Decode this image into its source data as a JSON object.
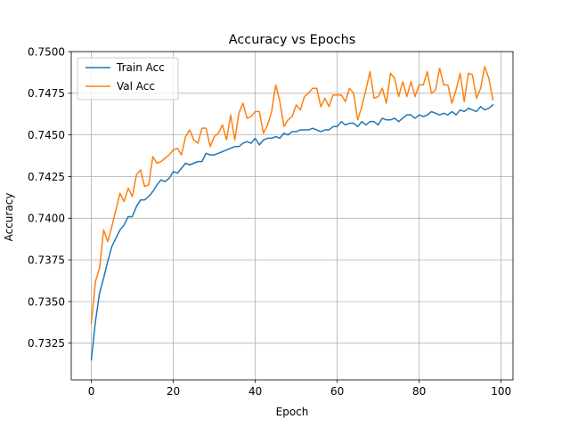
{
  "chart_data": {
    "type": "line",
    "title": "Accuracy vs Epochs",
    "xlabel": "Epoch",
    "ylabel": "Accuracy",
    "xlim": [
      -4.9,
      102.9
    ],
    "ylim": [
      0.7303,
      0.75
    ],
    "xticks": [
      0,
      20,
      40,
      60,
      80,
      100
    ],
    "xtick_labels": [
      "0",
      "20",
      "40",
      "60",
      "80",
      "100"
    ],
    "yticks": [
      0.7325,
      0.735,
      0.7375,
      0.74,
      0.7425,
      0.745,
      0.7475,
      0.75
    ],
    "ytick_labels": [
      "0.7325",
      "0.7350",
      "0.7375",
      "0.7400",
      "0.7425",
      "0.7450",
      "0.7475",
      "0.7500"
    ],
    "grid": true,
    "legend_position": "upper-left",
    "x": [
      0,
      1,
      2,
      3,
      4,
      5,
      6,
      7,
      8,
      9,
      10,
      11,
      12,
      13,
      14,
      15,
      16,
      17,
      18,
      19,
      20,
      21,
      22,
      23,
      24,
      25,
      26,
      27,
      28,
      29,
      30,
      31,
      32,
      33,
      34,
      35,
      36,
      37,
      38,
      39,
      40,
      41,
      42,
      43,
      44,
      45,
      46,
      47,
      48,
      49,
      50,
      51,
      52,
      53,
      54,
      55,
      56,
      57,
      58,
      59,
      60,
      61,
      62,
      63,
      64,
      65,
      66,
      67,
      68,
      69,
      70,
      71,
      72,
      73,
      74,
      75,
      76,
      77,
      78,
      79,
      80,
      81,
      82,
      83,
      84,
      85,
      86,
      87,
      88,
      89,
      90,
      91,
      92,
      93,
      94,
      95,
      96,
      97,
      98
    ],
    "series": [
      {
        "name": "Train Acc",
        "color": "#1f77b4",
        "values": [
          0.7315,
          0.7338,
          0.7355,
          0.7364,
          0.7374,
          0.7383,
          0.7388,
          0.7393,
          0.7396,
          0.7401,
          0.7401,
          0.7407,
          0.7411,
          0.7411,
          0.7413,
          0.7416,
          0.742,
          0.7423,
          0.7422,
          0.7424,
          0.7428,
          0.7427,
          0.743,
          0.7433,
          0.7432,
          0.7433,
          0.7434,
          0.7434,
          0.7439,
          0.7438,
          0.7438,
          0.7439,
          0.744,
          0.7441,
          0.7442,
          0.7443,
          0.7443,
          0.7445,
          0.7446,
          0.7445,
          0.7448,
          0.7444,
          0.7447,
          0.7448,
          0.7448,
          0.7449,
          0.7448,
          0.7451,
          0.745,
          0.7452,
          0.7452,
          0.7453,
          0.7453,
          0.7453,
          0.7454,
          0.7453,
          0.7452,
          0.7453,
          0.7453,
          0.7455,
          0.7455,
          0.7458,
          0.7456,
          0.7457,
          0.7457,
          0.7455,
          0.7458,
          0.7456,
          0.7458,
          0.7458,
          0.7456,
          0.746,
          0.7459,
          0.7459,
          0.746,
          0.7458,
          0.746,
          0.7462,
          0.7462,
          0.746,
          0.7462,
          0.7461,
          0.7462,
          0.7464,
          0.7463,
          0.7462,
          0.7463,
          0.7462,
          0.7464,
          0.7462,
          0.7465,
          0.7464,
          0.7466,
          0.7465,
          0.7464,
          0.7467,
          0.7465,
          0.7466,
          0.7468
        ]
      },
      {
        "name": "Val Acc",
        "color": "#ff7f0e",
        "values": [
          0.7337,
          0.7362,
          0.737,
          0.7393,
          0.7386,
          0.7395,
          0.7405,
          0.7415,
          0.741,
          0.7418,
          0.7413,
          0.7426,
          0.7429,
          0.7419,
          0.742,
          0.7437,
          0.7433,
          0.7434,
          0.7436,
          0.7438,
          0.7441,
          0.7442,
          0.7438,
          0.7449,
          0.7453,
          0.7447,
          0.7445,
          0.7454,
          0.7454,
          0.7443,
          0.7449,
          0.7451,
          0.7456,
          0.7447,
          0.7462,
          0.7447,
          0.7463,
          0.7469,
          0.746,
          0.7461,
          0.7464,
          0.7464,
          0.7451,
          0.7456,
          0.7464,
          0.748,
          0.747,
          0.7455,
          0.7459,
          0.7461,
          0.7468,
          0.7465,
          0.7473,
          0.7475,
          0.7478,
          0.7478,
          0.7467,
          0.7472,
          0.7467,
          0.7474,
          0.7474,
          0.7474,
          0.747,
          0.7478,
          0.7475,
          0.7459,
          0.7467,
          0.7477,
          0.7488,
          0.7472,
          0.7473,
          0.7478,
          0.7469,
          0.7487,
          0.7484,
          0.7473,
          0.7482,
          0.7473,
          0.7482,
          0.7473,
          0.748,
          0.748,
          0.7488,
          0.7475,
          0.7477,
          0.749,
          0.748,
          0.748,
          0.7469,
          0.7477,
          0.7487,
          0.747,
          0.7487,
          0.7486,
          0.7472,
          0.7478,
          0.7491,
          0.7484,
          0.7471
        ]
      }
    ]
  }
}
